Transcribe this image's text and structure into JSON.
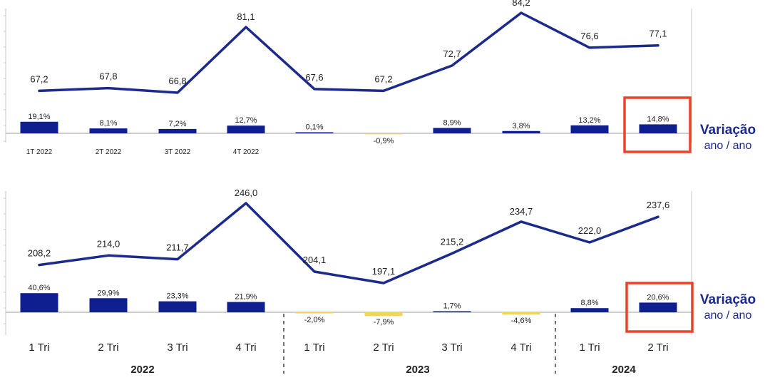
{
  "chart_data": [
    {
      "type": "bar",
      "categories": [
        "1T 2022",
        "2T 2022",
        "3T 2022",
        "4T 2022",
        "",
        "",
        "",
        "",
        "",
        ""
      ],
      "series": [
        {
          "type": "line",
          "values": [
            67.2,
            67.8,
            66.8,
            81.1,
            67.6,
            67.2,
            72.7,
            84.2,
            76.6,
            77.1
          ],
          "labels": [
            "67,2",
            "67,8",
            "66,8",
            "81,1",
            "67,6",
            "67,2",
            "72,7",
            "84,2",
            "76,6",
            "77,1"
          ]
        },
        {
          "type": "bar",
          "values": [
            19.1,
            8.1,
            7.2,
            12.7,
            0.1,
            -0.9,
            8.9,
            3.8,
            13.2,
            14.8
          ],
          "labels": [
            "19,1%",
            "8,1%",
            "7,2%",
            "12,7%",
            "0,1%",
            "-0,9%",
            "8,9%",
            "3,8%",
            "13,2%",
            "14,8%"
          ]
        }
      ],
      "highlight_index": 9,
      "side_label": {
        "title": "Variação",
        "subtitle": "ano / ano"
      }
    },
    {
      "type": "bar",
      "categories": [
        "1 Tri",
        "2 Tri",
        "3 Tri",
        "4 Tri",
        "1 Tri",
        "2 Tri",
        "3 Tri",
        "4 Tri",
        "1 Tri",
        "2 Tri"
      ],
      "groups": [
        {
          "label": "2022",
          "from": 0,
          "to": 3
        },
        {
          "label": "2023",
          "from": 4,
          "to": 7
        },
        {
          "label": "2024",
          "from": 8,
          "to": 9
        }
      ],
      "series": [
        {
          "type": "line",
          "values": [
            208.2,
            214.0,
            211.7,
            246.0,
            204.1,
            197.1,
            215.2,
            234.7,
            222.0,
            237.6
          ],
          "labels": [
            "208,2",
            "214,0",
            "211,7",
            "246,0",
            "204,1",
            "197,1",
            "215,2",
            "234,7",
            "222,0",
            "237,6"
          ]
        },
        {
          "type": "bar",
          "values": [
            40.6,
            29.9,
            23.3,
            21.9,
            -2.0,
            -7.9,
            1.7,
            -4.6,
            8.8,
            20.6
          ],
          "labels": [
            "40,6%",
            "29,9%",
            "23,3%",
            "21,9%",
            "-2,0%",
            "-7,9%",
            "1,7%",
            "-4,6%",
            "8,8%",
            "20,6%"
          ]
        }
      ],
      "highlight_index": 9,
      "side_label": {
        "title": "Variação",
        "subtitle": "ano / ano"
      }
    }
  ],
  "colors": {
    "line": "#1b2a8c",
    "bar_positive": "#0f1f8f",
    "bar_negative": "#f2d45c",
    "highlight": "#e8432b",
    "axis": "#c8c8c8",
    "text": "#222222"
  }
}
